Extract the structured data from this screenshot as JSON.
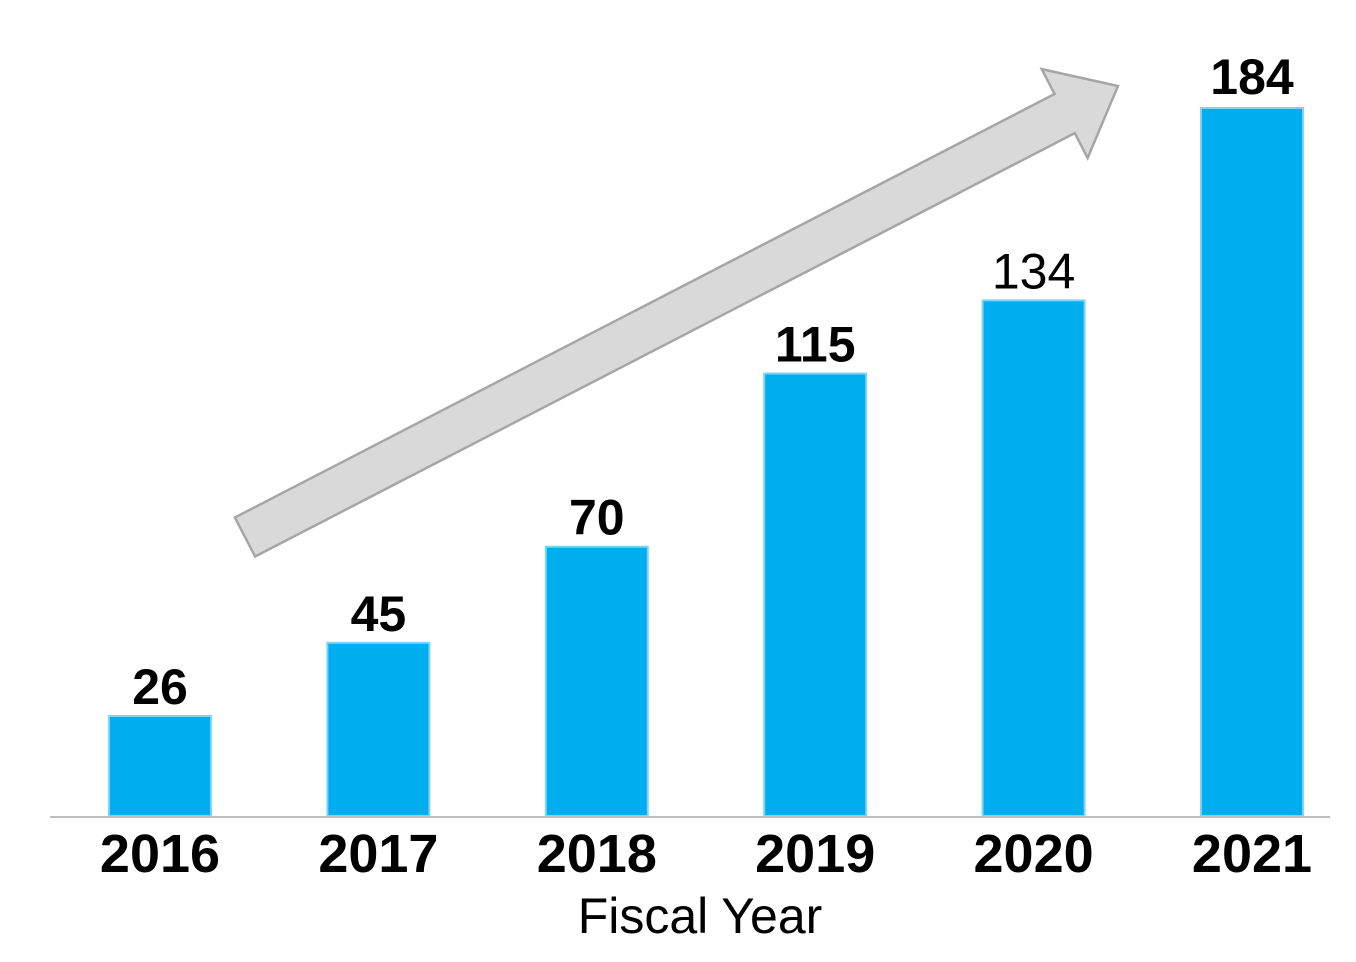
{
  "chart_data": {
    "type": "bar",
    "categories": [
      "2016",
      "2017",
      "2018",
      "2019",
      "2020",
      "2021"
    ],
    "values": [
      26,
      45,
      70,
      115,
      134,
      184
    ],
    "data_labels": [
      "26",
      "45",
      "70",
      "115",
      "134",
      "184"
    ],
    "xlabel": "Fiscal Year",
    "ylabel": "",
    "ylim": [
      0,
      184
    ],
    "grid": false,
    "legend": "none",
    "trend_arrow": true,
    "label_bold": [
      true,
      true,
      true,
      true,
      false,
      true
    ],
    "colors": {
      "bar": "#00AEEF",
      "bar_edge": "#7FD3F5",
      "highlight_label": "#00AEEF",
      "label": "#000000",
      "axis_line": "#BFBFBF",
      "arrow_fill": "#D9D9D9",
      "arrow_stroke": "#A6A6A6"
    }
  }
}
